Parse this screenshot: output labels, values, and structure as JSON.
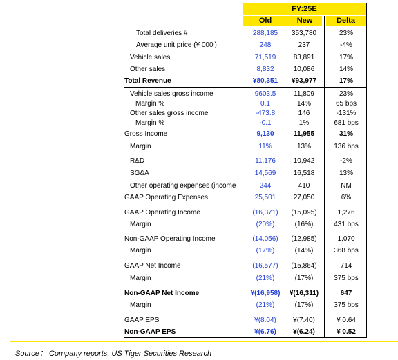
{
  "header": {
    "period": "FY:25E",
    "col_old": "Old",
    "col_new": "New",
    "col_delta": "Delta"
  },
  "rows": [
    {
      "label": "Total deliveries #",
      "old": "288,185",
      "new": "353,780",
      "delta": "23%"
    },
    {
      "label": "Average unit price (¥ 000')",
      "old": "248",
      "new": "237",
      "delta": "-4%"
    },
    {
      "label": "Vehicle sales",
      "old": "71,519",
      "new": "83,891",
      "delta": "17%"
    },
    {
      "label": "Other sales",
      "old": "8,832",
      "new": "10,086",
      "delta": "14%"
    },
    {
      "label": "Total Revenue",
      "old": "¥80,351",
      "new": "¥93,977",
      "delta": "17%"
    },
    {
      "label": "Vehicle sales gross income",
      "old": "9603.5",
      "new": "11,809",
      "delta": "23%"
    },
    {
      "label": "Margin %",
      "old": "0.1",
      "new": "14%",
      "delta": "65 bps"
    },
    {
      "label": "Other sales gross income",
      "old": "-473.8",
      "new": "146",
      "delta": "-131%"
    },
    {
      "label": "Margin %",
      "old": "-0.1",
      "new": "1%",
      "delta": "681 bps"
    },
    {
      "label": "Gross Income",
      "old": "9,130",
      "new": "11,955",
      "delta": "31%"
    },
    {
      "label": "Margin",
      "old": "11%",
      "new": "13%",
      "delta": "136 bps"
    },
    {
      "label": "R&D",
      "old": "11,176",
      "new": "10,942",
      "delta": "-2%"
    },
    {
      "label": "SG&A",
      "old": "14,569",
      "new": "16,518",
      "delta": "13%"
    },
    {
      "label": "Other operating expenses (income",
      "old": "244",
      "new": "410",
      "delta": "NM"
    },
    {
      "label": "GAAP Operating Expenses",
      "old": "25,501",
      "new": "27,050",
      "delta": "6%"
    },
    {
      "label": "GAAP Operating Income",
      "old": "(16,371)",
      "new": "(15,095)",
      "delta": "1,276"
    },
    {
      "label": "Margin",
      "old": "(20%)",
      "new": "(16%)",
      "delta": "431 bps"
    },
    {
      "label": "Non-GAAP Operating Income",
      "old": "(14,056)",
      "new": "(12,985)",
      "delta": "1,070"
    },
    {
      "label": "Margin",
      "old": "(17%)",
      "new": "(14%)",
      "delta": "368 bps"
    },
    {
      "label": "GAAP Net Income",
      "old": "(16,577)",
      "new": "(15,864)",
      "delta": "714"
    },
    {
      "label": "Margin",
      "old": "(21%)",
      "new": "(17%)",
      "delta": "375 bps"
    },
    {
      "label": "Non-GAAP Net Income",
      "old": "¥(16,958)",
      "new": "¥(16,311)",
      "delta": "647"
    },
    {
      "label": "Margin",
      "old": "(21%)",
      "new": "(17%)",
      "delta": "375 bps"
    },
    {
      "label": "GAAP EPS",
      "old": "¥(8.04)",
      "new": "¥(7.40)",
      "delta": "¥ 0.64"
    },
    {
      "label": "Non-GAAP EPS",
      "old": "¥(6.76)",
      "new": "¥(6.24)",
      "delta": "¥ 0.52"
    }
  ],
  "source": "Source： Company reports, US Tiger Securities Research"
}
